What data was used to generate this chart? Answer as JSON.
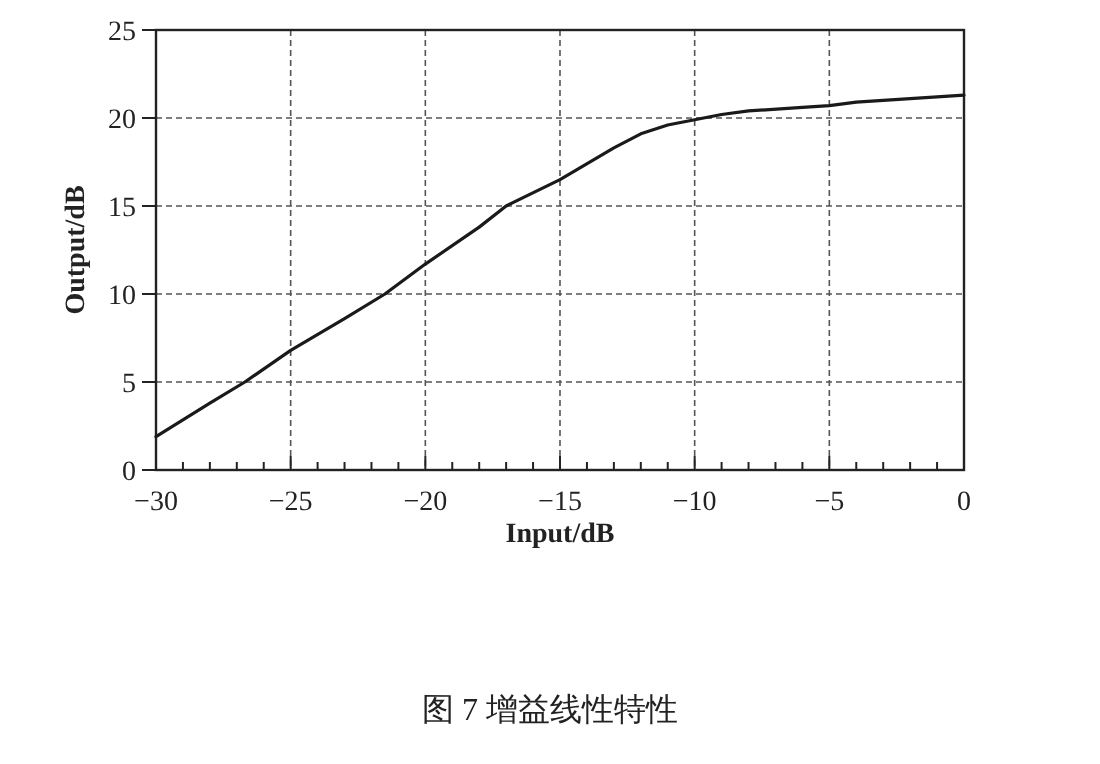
{
  "chart_data": {
    "type": "line",
    "xlabel": "Input/dB",
    "ylabel": "Output/dB",
    "annotations": [
      "图 7  增益线性特性"
    ],
    "x": [
      -30,
      -28,
      -26.7,
      -25,
      -23,
      -21.5,
      -20,
      -18,
      -17,
      -15,
      -13,
      -12,
      -11,
      -10,
      -9,
      -8,
      -6,
      -5,
      -4,
      -3,
      -2,
      -1,
      0
    ],
    "series": [
      {
        "color": "#1a1a1a",
        "values": [
          1.9,
          3.8,
          5.0,
          6.8,
          8.6,
          10.0,
          11.7,
          13.8,
          15.0,
          16.5,
          18.3,
          19.1,
          19.6,
          19.9,
          20.2,
          20.4,
          20.6,
          20.7,
          20.9,
          21.0,
          21.1,
          21.2,
          21.3
        ]
      }
    ],
    "xlim": [
      -30,
      0
    ],
    "ylim": [
      0,
      25
    ],
    "xticks": [
      -30,
      {
        "value": -29,
        "label": null
      },
      {
        "value": -28,
        "label": null
      },
      {
        "value": -27,
        "label": null
      },
      {
        "value": -26,
        "label": null
      },
      -25,
      {
        "value": -24,
        "label": null
      },
      {
        "value": -23,
        "label": null
      },
      {
        "value": -22,
        "label": null
      },
      {
        "value": -21,
        "label": null
      },
      -20,
      {
        "value": -19,
        "label": null
      },
      {
        "value": -18,
        "label": null
      },
      {
        "value": -17,
        "label": null
      },
      {
        "value": -16,
        "label": null
      },
      -15,
      {
        "value": -14,
        "label": null
      },
      {
        "value": -13,
        "label": null
      },
      {
        "value": -12,
        "label": null
      },
      {
        "value": -11,
        "label": null
      },
      -10,
      {
        "value": -9,
        "label": null
      },
      {
        "value": -8,
        "label": null
      },
      {
        "value": -7,
        "label": null
      },
      {
        "value": -6,
        "label": null
      },
      -5,
      {
        "value": -4,
        "label": null
      },
      {
        "value": -3,
        "label": null
      },
      {
        "value": -2,
        "label": null
      },
      {
        "value": -1,
        "label": null
      },
      0
    ],
    "yticks": [
      0,
      5,
      10,
      15,
      20,
      25
    ],
    "grid": true,
    "marker": "none",
    "line_style": "solid"
  }
}
